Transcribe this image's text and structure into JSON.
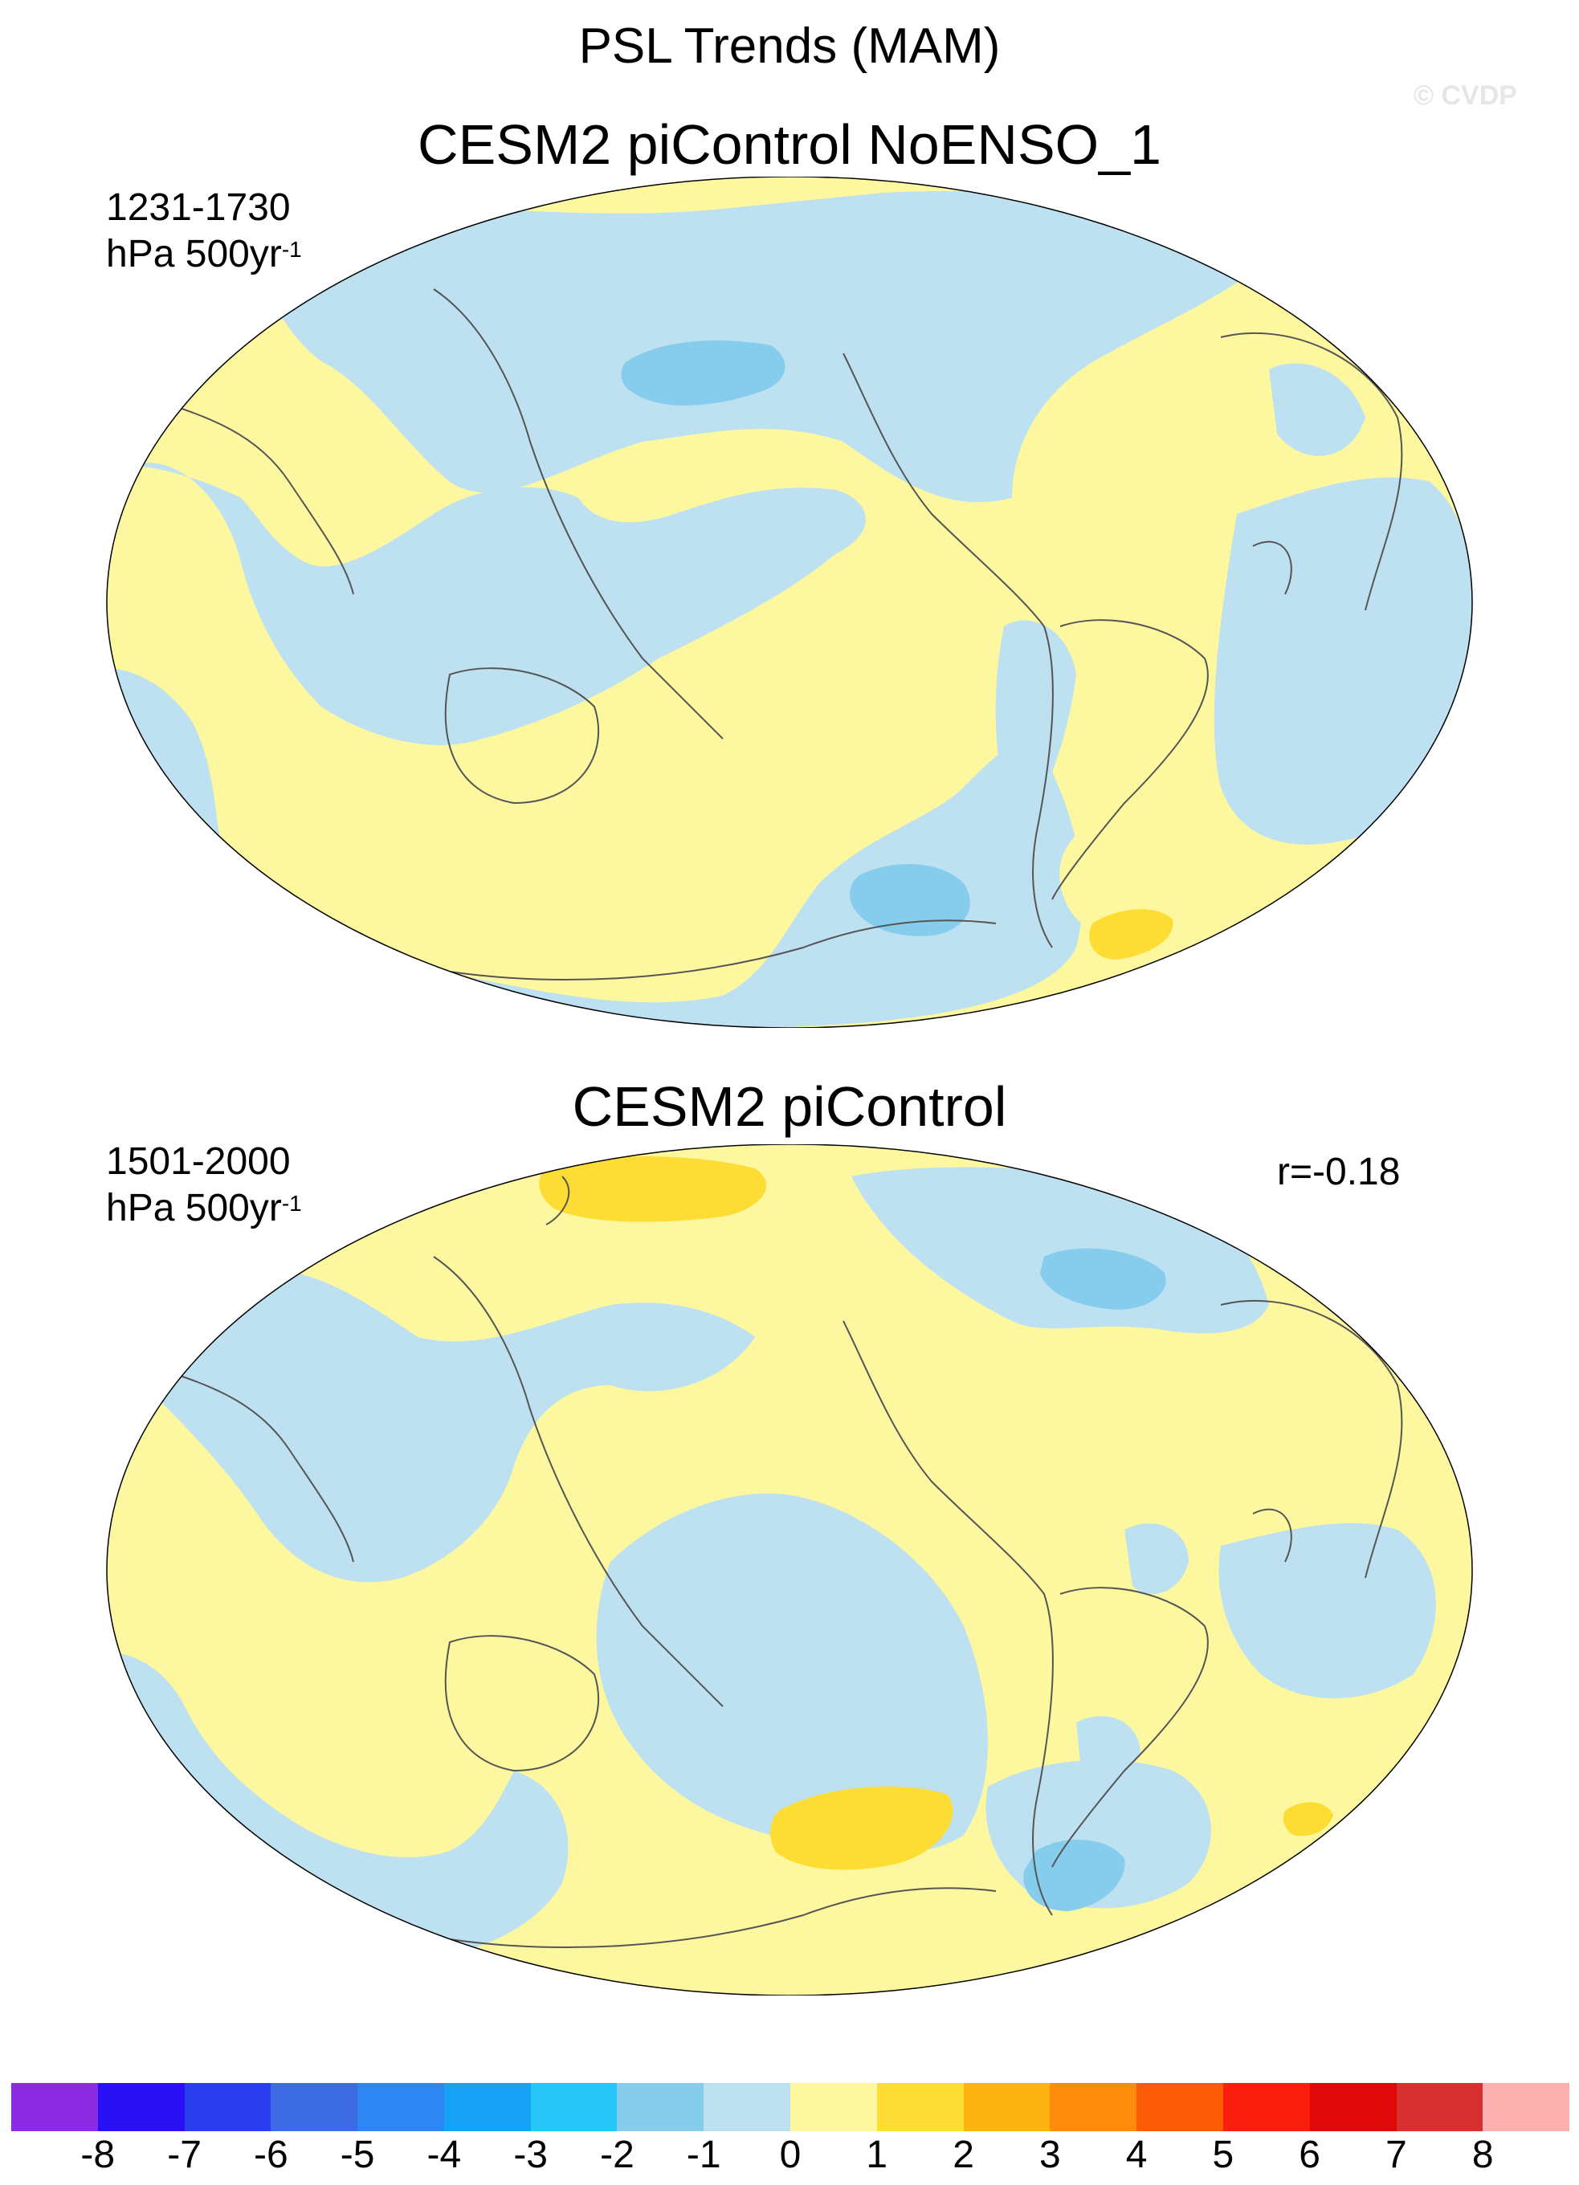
{
  "figure": {
    "title": "PSL Trends (MAM)",
    "watermark": "© CVDP"
  },
  "panels": [
    {
      "title": "CESM2 piControl NoENSO_1",
      "period": "1231-1730",
      "units_base": "hPa 500yr",
      "units_exp": "-1",
      "correlation": ""
    },
    {
      "title": "CESM2 piControl",
      "period": "1501-2000",
      "units_base": "hPa 500yr",
      "units_exp": "-1",
      "correlation": "r=-0.18"
    }
  ],
  "colorbar": {
    "labels": [
      "-8",
      "-7",
      "-6",
      "-5",
      "-4",
      "-3",
      "-2",
      "-1",
      "0",
      "1",
      "2",
      "3",
      "4",
      "5",
      "6",
      "7",
      "8"
    ],
    "colors": [
      "#8a2be2",
      "#2a10f5",
      "#2a3ef0",
      "#3d6be3",
      "#2e86f2",
      "#18a2f5",
      "#26c6f9",
      "#86ccec",
      "#bde1f1",
      "#fdf8a0",
      "#fddd33",
      "#fdb412",
      "#fd8b0c",
      "#fd5b06",
      "#fc1e0c",
      "#e00909",
      "#d63030",
      "#fdb0b0"
    ]
  },
  "map_legend": {
    "positive_fill": "#fdf8a0",
    "negative_fill": "#bde1f1",
    "strong_positive_fill": "#fddd33",
    "strong_negative_fill": "#86ccec",
    "coastline_color": "#555555"
  }
}
